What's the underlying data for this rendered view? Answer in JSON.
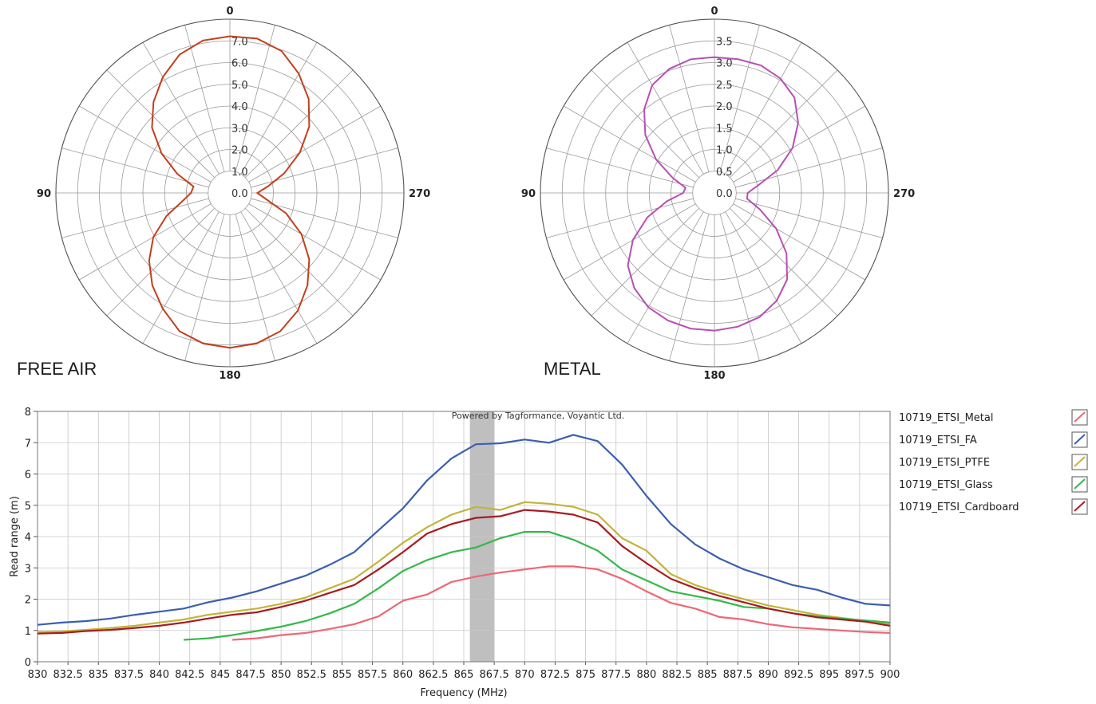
{
  "polar_left": {
    "caption": "FREE AIR"
  },
  "polar_right": {
    "caption": "METAL"
  },
  "line_chart": {
    "watermark": "Powered by Tagformance, Voyantic Ltd."
  },
  "colors": {
    "Metal": "#ef6677",
    "FA": "#3a5fb0",
    "PTFE": "#c2b43a",
    "Glass": "#35b84a",
    "Cardboard": "#a61c22",
    "polar_free_air": "#c2401c",
    "polar_metal": "#b84fb4",
    "highlight_band": "#bfbfbf",
    "grid": "#c6c6c6"
  },
  "chart_data": [
    {
      "type": "polar",
      "title": "FREE AIR",
      "angle_labels": [
        "0",
        "90",
        "180",
        "270"
      ],
      "radial_ticks": [
        "0.0",
        "1.0",
        "2.0",
        "3.0",
        "4.0",
        "5.0",
        "6.0",
        "7.0"
      ],
      "rlim": [
        0,
        8
      ],
      "angle_step_deg": 15,
      "series": [
        {
          "color": "#c2401c",
          "angles_deg": [
            0,
            10,
            20,
            30,
            40,
            50,
            60,
            70,
            80,
            90,
            100,
            110,
            120,
            130,
            140,
            150,
            160,
            170,
            180,
            190,
            200,
            210,
            220,
            230,
            240,
            250,
            260,
            270,
            280,
            290,
            300,
            310,
            320,
            330,
            340,
            350
          ],
          "values": [
            7.1,
            7.0,
            6.6,
            5.9,
            5.1,
            4.2,
            3.0,
            1.8,
            0.8,
            0.9,
            1.4,
            2.4,
            3.5,
            4.4,
            5.2,
            5.9,
            6.6,
            6.9,
            7.0,
            6.9,
            6.6,
            6.0,
            5.2,
            4.3,
            3.2,
            2.0,
            0.8,
            0.3,
            0.9,
            1.9,
            3.1,
            4.3,
            5.3,
            6.1,
            6.8,
            7.1
          ]
        }
      ]
    },
    {
      "type": "polar",
      "title": "METAL",
      "angle_labels": [
        "0",
        "90",
        "180",
        "270"
      ],
      "radial_ticks": [
        "0.0",
        "0.5",
        "1.0",
        "1.5",
        "2.0",
        "2.5",
        "3.0",
        "3.5"
      ],
      "rlim": [
        0,
        4
      ],
      "angle_step_deg": 15,
      "series": [
        {
          "color": "#b84fb4",
          "angles_deg": [
            0,
            10,
            20,
            30,
            40,
            50,
            60,
            70,
            80,
            90,
            100,
            110,
            120,
            130,
            140,
            150,
            160,
            170,
            180,
            190,
            200,
            210,
            220,
            230,
            240,
            250,
            260,
            270,
            280,
            290,
            300,
            310,
            320,
            330,
            340,
            350
          ],
          "values": [
            3.0,
            3.0,
            2.9,
            2.7,
            2.3,
            1.8,
            1.2,
            0.6,
            0.2,
            0.25,
            0.7,
            1.3,
            1.9,
            2.4,
            2.7,
            2.9,
            3.0,
            3.05,
            3.05,
            3.0,
            2.9,
            2.7,
            2.4,
            1.9,
            1.3,
            0.7,
            0.3,
            0.3,
            0.6,
            1.2,
            1.8,
            2.3,
            2.7,
            2.9,
            3.0,
            3.0
          ]
        }
      ]
    },
    {
      "type": "line",
      "xlabel": "Frequency (MHz)",
      "ylabel": "Read range (m)",
      "xlim": [
        830,
        900
      ],
      "ylim": [
        0,
        8
      ],
      "x_ticks": [
        "830",
        "832.5",
        "835",
        "837.5",
        "840",
        "842.5",
        "845",
        "847.5",
        "850",
        "852.5",
        "855",
        "857.5",
        "860",
        "862.5",
        "865",
        "867.5",
        "870",
        "872.5",
        "875",
        "877.5",
        "880",
        "882.5",
        "885",
        "887.5",
        "890",
        "892.5",
        "895",
        "897.5",
        "900"
      ],
      "y_ticks": [
        "0",
        "1",
        "2",
        "3",
        "4",
        "5",
        "6",
        "7",
        "8"
      ],
      "grid": true,
      "legend_position": "right",
      "highlight_band": [
        865.5,
        867.5
      ],
      "series": [
        {
          "name": "10719_ETSI_Metal",
          "color": "#ef6677",
          "x": [
            846,
            848,
            850,
            852,
            854,
            856,
            858,
            860,
            862,
            864,
            866,
            868,
            870,
            872,
            874,
            876,
            878,
            880,
            882,
            884,
            886,
            888,
            890,
            892,
            894,
            896,
            898,
            900
          ],
          "values": [
            0.7,
            0.75,
            0.85,
            0.92,
            1.05,
            1.2,
            1.45,
            1.95,
            2.15,
            2.55,
            2.72,
            2.85,
            2.95,
            3.05,
            3.05,
            2.95,
            2.65,
            2.25,
            1.88,
            1.7,
            1.43,
            1.35,
            1.2,
            1.1,
            1.05,
            1.0,
            0.95,
            0.92
          ]
        },
        {
          "name": "10719_ETSI_FA",
          "color": "#3a5fb0",
          "x": [
            830,
            832,
            834,
            836,
            838,
            840,
            842,
            844,
            846,
            848,
            850,
            852,
            854,
            856,
            858,
            860,
            862,
            864,
            866,
            868,
            870,
            872,
            874,
            876,
            878,
            880,
            882,
            884,
            886,
            888,
            890,
            892,
            894,
            896,
            898,
            900
          ],
          "values": [
            1.18,
            1.25,
            1.3,
            1.38,
            1.5,
            1.6,
            1.7,
            1.9,
            2.05,
            2.25,
            2.5,
            2.75,
            3.1,
            3.5,
            4.2,
            4.9,
            5.8,
            6.5,
            6.95,
            6.98,
            7.1,
            7.0,
            7.25,
            7.05,
            6.3,
            5.3,
            4.4,
            3.75,
            3.3,
            2.95,
            2.7,
            2.45,
            2.3,
            2.05,
            1.85,
            1.8
          ]
        },
        {
          "name": "10719_ETSI_PTFE",
          "color": "#c2b43a",
          "x": [
            830,
            832,
            834,
            836,
            838,
            840,
            842,
            844,
            846,
            848,
            850,
            852,
            854,
            856,
            858,
            860,
            862,
            864,
            866,
            868,
            870,
            872,
            874,
            876,
            878,
            880,
            882,
            884,
            886,
            888,
            890,
            892,
            894,
            896,
            898,
            900
          ],
          "values": [
            0.95,
            0.97,
            1.02,
            1.08,
            1.15,
            1.25,
            1.35,
            1.5,
            1.6,
            1.7,
            1.85,
            2.05,
            2.35,
            2.65,
            3.2,
            3.8,
            4.3,
            4.7,
            4.95,
            4.85,
            5.1,
            5.05,
            4.95,
            4.7,
            3.95,
            3.55,
            2.8,
            2.45,
            2.2,
            2.0,
            1.8,
            1.65,
            1.5,
            1.4,
            1.3,
            1.2
          ]
        },
        {
          "name": "10719_ETSI_Glass",
          "color": "#35b84a",
          "x": [
            842,
            844,
            846,
            848,
            850,
            852,
            854,
            856,
            858,
            860,
            862,
            864,
            866,
            868,
            870,
            872,
            874,
            876,
            878,
            880,
            882,
            884,
            886,
            888,
            890,
            892,
            894,
            896,
            898,
            900
          ],
          "values": [
            0.7,
            0.75,
            0.85,
            0.98,
            1.12,
            1.3,
            1.55,
            1.85,
            2.35,
            2.9,
            3.25,
            3.5,
            3.65,
            3.95,
            4.15,
            4.15,
            3.9,
            3.55,
            2.95,
            2.6,
            2.25,
            2.1,
            1.95,
            1.75,
            1.7,
            1.55,
            1.45,
            1.38,
            1.32,
            1.25
          ]
        },
        {
          "name": "10719_ETSI_Cardboard",
          "color": "#a61c22",
          "x": [
            830,
            832,
            834,
            836,
            838,
            840,
            842,
            844,
            846,
            848,
            850,
            852,
            854,
            856,
            858,
            860,
            862,
            864,
            866,
            868,
            870,
            872,
            874,
            876,
            878,
            880,
            882,
            884,
            886,
            888,
            890,
            892,
            894,
            896,
            898,
            900
          ],
          "values": [
            0.9,
            0.92,
            0.98,
            1.02,
            1.08,
            1.15,
            1.25,
            1.38,
            1.5,
            1.58,
            1.75,
            1.95,
            2.2,
            2.45,
            2.95,
            3.5,
            4.1,
            4.4,
            4.6,
            4.65,
            4.85,
            4.8,
            4.7,
            4.45,
            3.7,
            3.15,
            2.65,
            2.35,
            2.1,
            1.9,
            1.7,
            1.55,
            1.42,
            1.35,
            1.28,
            1.15
          ]
        }
      ]
    }
  ]
}
